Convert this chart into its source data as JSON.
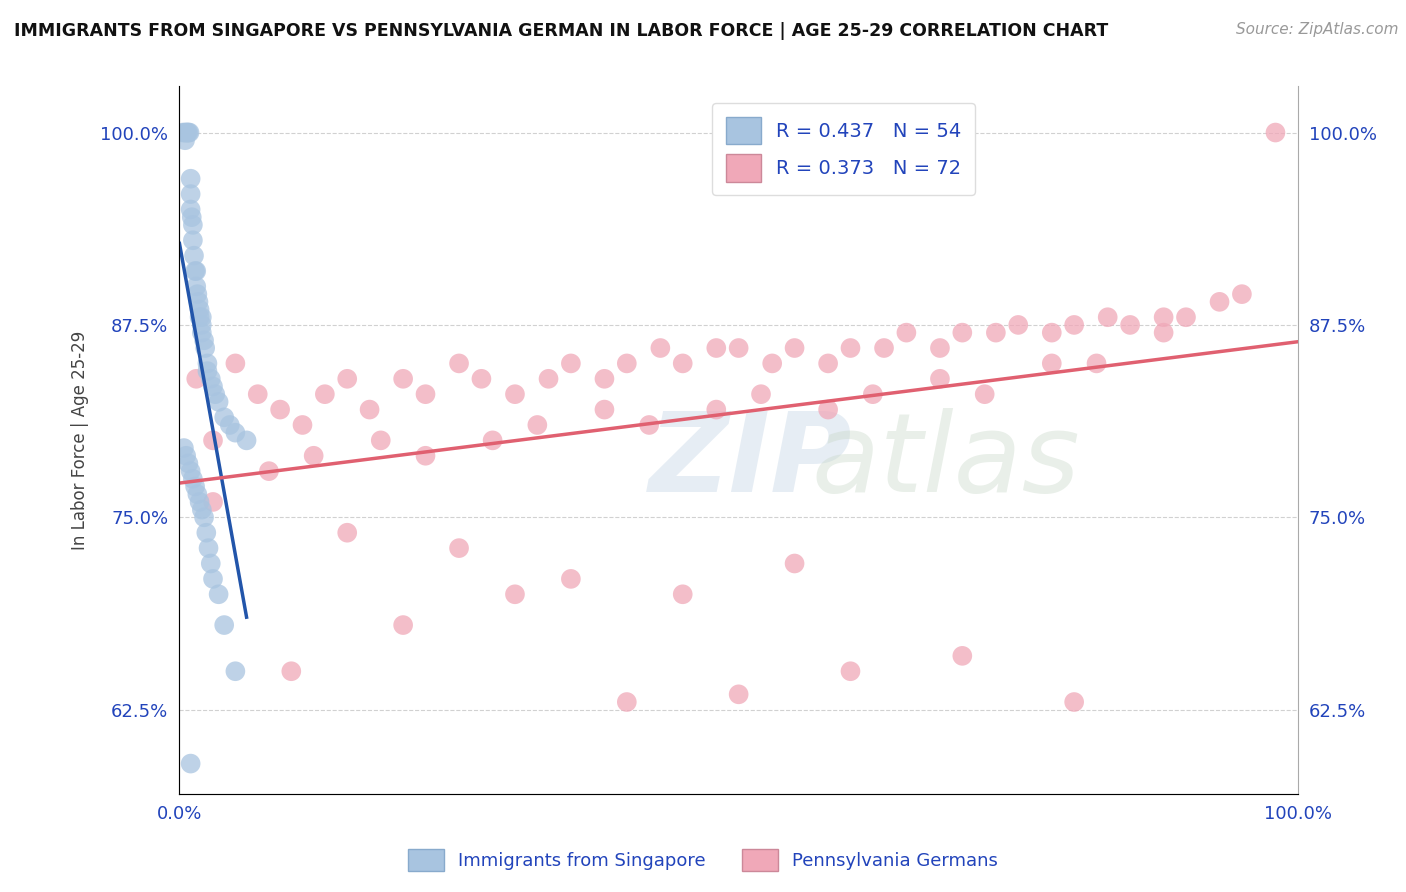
{
  "title": "IMMIGRANTS FROM SINGAPORE VS PENNSYLVANIA GERMAN IN LABOR FORCE | AGE 25-29 CORRELATION CHART",
  "source_text": "Source: ZipAtlas.com",
  "ylabel": "In Labor Force | Age 25-29",
  "xlim": [
    0,
    100
  ],
  "ylim": [
    57,
    103
  ],
  "yticks": [
    62.5,
    75.0,
    87.5,
    100.0
  ],
  "ytick_labels": [
    "62.5%",
    "75.0%",
    "87.5%",
    "100.0%"
  ],
  "xtick_labels": [
    "0.0%",
    "100.0%"
  ],
  "legend_R_singapore": "R = 0.437",
  "legend_N_singapore": "N = 54",
  "legend_R_pa": "R = 0.373",
  "legend_N_pa": "N = 72",
  "singapore_color": "#a8c4e0",
  "pa_color": "#f0a8b8",
  "singapore_line_color": "#2255aa",
  "pa_line_color": "#e06070",
  "singapore_scatter_x": [
    0.3,
    0.5,
    0.5,
    0.6,
    0.7,
    0.8,
    0.9,
    1.0,
    1.0,
    1.0,
    1.1,
    1.2,
    1.2,
    1.3,
    1.4,
    1.5,
    1.5,
    1.6,
    1.7,
    1.8,
    1.8,
    2.0,
    2.0,
    2.0,
    2.2,
    2.3,
    2.5,
    2.5,
    2.8,
    3.0,
    3.2,
    3.5,
    4.0,
    4.5,
    5.0,
    6.0,
    0.4,
    0.6,
    0.8,
    1.0,
    1.2,
    1.4,
    1.6,
    1.8,
    2.0,
    2.2,
    2.4,
    2.6,
    2.8,
    3.0,
    3.5,
    4.0,
    5.0,
    1.0
  ],
  "singapore_scatter_y": [
    100.0,
    100.0,
    99.5,
    100.0,
    100.0,
    100.0,
    100.0,
    97.0,
    96.0,
    95.0,
    94.5,
    94.0,
    93.0,
    92.0,
    91.0,
    91.0,
    90.0,
    89.5,
    89.0,
    88.5,
    88.0,
    88.0,
    87.5,
    87.0,
    86.5,
    86.0,
    85.0,
    84.5,
    84.0,
    83.5,
    83.0,
    82.5,
    81.5,
    81.0,
    80.5,
    80.0,
    79.5,
    79.0,
    78.5,
    78.0,
    77.5,
    77.0,
    76.5,
    76.0,
    75.5,
    75.0,
    74.0,
    73.0,
    72.0,
    71.0,
    70.0,
    68.0,
    65.0,
    59.0
  ],
  "pa_scatter_x": [
    1.5,
    3.0,
    5.0,
    7.0,
    9.0,
    11.0,
    13.0,
    15.0,
    17.0,
    20.0,
    22.0,
    25.0,
    27.0,
    30.0,
    33.0,
    35.0,
    38.0,
    40.0,
    43.0,
    45.0,
    48.0,
    50.0,
    53.0,
    55.0,
    58.0,
    60.0,
    63.0,
    65.0,
    68.0,
    70.0,
    73.0,
    75.0,
    78.0,
    80.0,
    83.0,
    85.0,
    88.0,
    90.0,
    93.0,
    95.0,
    98.0,
    3.0,
    8.0,
    12.0,
    18.0,
    22.0,
    28.0,
    32.0,
    38.0,
    42.0,
    48.0,
    52.0,
    58.0,
    62.0,
    68.0,
    72.0,
    78.0,
    82.0,
    88.0,
    55.0,
    30.0,
    20.0,
    10.0,
    40.0,
    50.0,
    15.0,
    25.0,
    35.0,
    45.0,
    60.0,
    70.0,
    80.0
  ],
  "pa_scatter_y": [
    84.0,
    80.0,
    85.0,
    83.0,
    82.0,
    81.0,
    83.0,
    84.0,
    82.0,
    84.0,
    83.0,
    85.0,
    84.0,
    83.0,
    84.0,
    85.0,
    84.0,
    85.0,
    86.0,
    85.0,
    86.0,
    86.0,
    85.0,
    86.0,
    85.0,
    86.0,
    86.0,
    87.0,
    86.0,
    87.0,
    87.0,
    87.5,
    87.0,
    87.5,
    88.0,
    87.5,
    88.0,
    88.0,
    89.0,
    89.5,
    100.0,
    76.0,
    78.0,
    79.0,
    80.0,
    79.0,
    80.0,
    81.0,
    82.0,
    81.0,
    82.0,
    83.0,
    82.0,
    83.0,
    84.0,
    83.0,
    85.0,
    85.0,
    87.0,
    72.0,
    70.0,
    68.0,
    65.0,
    63.0,
    63.5,
    74.0,
    73.0,
    71.0,
    70.0,
    65.0,
    66.0,
    63.0
  ]
}
